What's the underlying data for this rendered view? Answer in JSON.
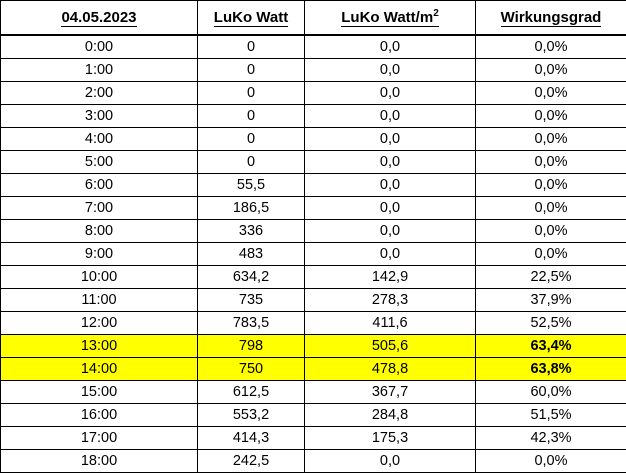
{
  "headers": {
    "date": "04.05.2023",
    "watt": "LuKo Watt",
    "watt_m2_base": "LuKo Watt/m",
    "watt_m2_sup": "2",
    "efficiency": "Wirkungsgrad"
  },
  "rows": [
    {
      "time": "0:00",
      "watt": "0",
      "watt_m2": "0,0",
      "eff": "0,0%",
      "highlight": false
    },
    {
      "time": "1:00",
      "watt": "0",
      "watt_m2": "0,0",
      "eff": "0,0%",
      "highlight": false
    },
    {
      "time": "2:00",
      "watt": "0",
      "watt_m2": "0,0",
      "eff": "0,0%",
      "highlight": false
    },
    {
      "time": "3:00",
      "watt": "0",
      "watt_m2": "0,0",
      "eff": "0,0%",
      "highlight": false
    },
    {
      "time": "4:00",
      "watt": "0",
      "watt_m2": "0,0",
      "eff": "0,0%",
      "highlight": false
    },
    {
      "time": "5:00",
      "watt": "0",
      "watt_m2": "0,0",
      "eff": "0,0%",
      "highlight": false
    },
    {
      "time": "6:00",
      "watt": "55,5",
      "watt_m2": "0,0",
      "eff": "0,0%",
      "highlight": false
    },
    {
      "time": "7:00",
      "watt": "186,5",
      "watt_m2": "0,0",
      "eff": "0,0%",
      "highlight": false
    },
    {
      "time": "8:00",
      "watt": "336",
      "watt_m2": "0,0",
      "eff": "0,0%",
      "highlight": false
    },
    {
      "time": "9:00",
      "watt": "483",
      "watt_m2": "0,0",
      "eff": "0,0%",
      "highlight": false
    },
    {
      "time": "10:00",
      "watt": "634,2",
      "watt_m2": "142,9",
      "eff": "22,5%",
      "highlight": false
    },
    {
      "time": "11:00",
      "watt": "735",
      "watt_m2": "278,3",
      "eff": "37,9%",
      "highlight": false
    },
    {
      "time": "12:00",
      "watt": "783,5",
      "watt_m2": "411,6",
      "eff": "52,5%",
      "highlight": false
    },
    {
      "time": "13:00",
      "watt": "798",
      "watt_m2": "505,6",
      "eff": "63,4%",
      "highlight": true
    },
    {
      "time": "14:00",
      "watt": "750",
      "watt_m2": "478,8",
      "eff": "63,8%",
      "highlight": true
    },
    {
      "time": "15:00",
      "watt": "612,5",
      "watt_m2": "367,7",
      "eff": "60,0%",
      "highlight": false
    },
    {
      "time": "16:00",
      "watt": "553,2",
      "watt_m2": "284,8",
      "eff": "51,5%",
      "highlight": false
    },
    {
      "time": "17:00",
      "watt": "414,3",
      "watt_m2": "175,3",
      "eff": "42,3%",
      "highlight": false
    },
    {
      "time": "18:00",
      "watt": "242,5",
      "watt_m2": "0,0",
      "eff": "0,0%",
      "highlight": false
    }
  ],
  "colors": {
    "highlight": "#ffff00",
    "grid": "#000000"
  }
}
